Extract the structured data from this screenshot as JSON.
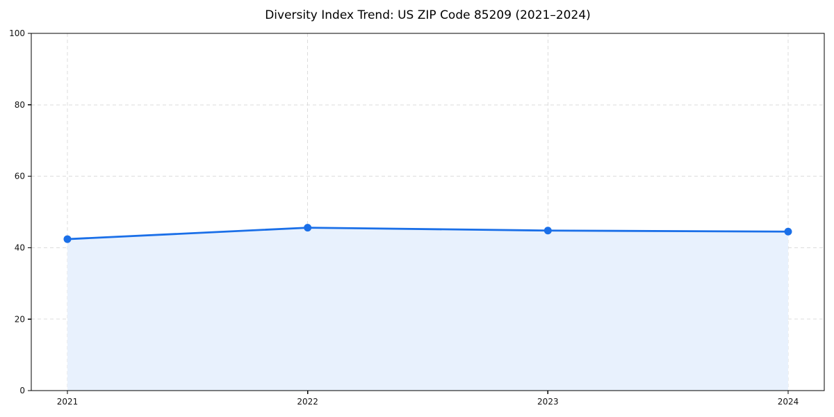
{
  "chart_data": {
    "type": "line",
    "title": "Diversity Index Trend: US ZIP Code 85209 (2021–2024)",
    "categories": [
      "2021",
      "2022",
      "2023",
      "2024"
    ],
    "series": [
      {
        "name": "Diversity Index",
        "values": [
          42.4,
          45.6,
          44.8,
          44.5
        ]
      }
    ],
    "xlabel": "",
    "ylabel": "",
    "ylim": [
      0,
      100
    ],
    "yticks": [
      0,
      20,
      40,
      60,
      80,
      100
    ],
    "grid": true,
    "grid_style": "dashed",
    "legend_position": "none",
    "area_fill": true,
    "marker": "circle",
    "colors": {
      "line": "#1a6fe8",
      "marker": "#1a6fe8",
      "area": "#e8f1fd",
      "grid": "#dcdcdc",
      "spine": "#000000",
      "tick_text": "#111111",
      "background": "#ffffff"
    }
  }
}
